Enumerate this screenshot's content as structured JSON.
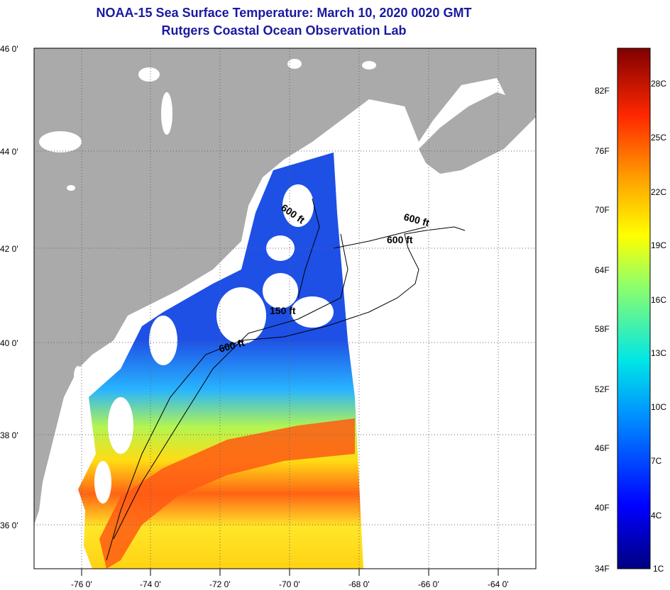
{
  "header": {
    "title": "NOAA-15 Sea Surface Temperature:  March 10, 2020 0020 GMT",
    "subtitle": "Rutgers Coastal Ocean Observation Lab"
  },
  "map": {
    "lon_labels": [
      "-76 0'",
      "-74 0'",
      "-72 0'",
      "-70 0'",
      "-68 0'",
      "-66 0'",
      "-64 0'"
    ],
    "lat_labels": [
      "46 0'",
      "44 0'",
      "42 0'",
      "40 0'",
      "38 0'",
      "36 0'"
    ],
    "contour_labels": [
      "600 ft",
      "600 ft",
      "600 ft",
      "150 ft",
      "600 ft"
    ],
    "colors": {
      "land": "#aaaaaa",
      "cloud": "#ffffff",
      "cold": "#1e46e6",
      "warm": "#ff5a14"
    }
  },
  "colorbar": {
    "f_labels": [
      "82F",
      "76F",
      "70F",
      "64F",
      "58F",
      "52F",
      "46F",
      "40F",
      "34F"
    ],
    "c_labels": [
      "28C",
      "25C",
      "22C",
      "19C",
      "16C",
      "13C",
      "10C",
      "7C",
      "4C",
      "1C"
    ]
  }
}
